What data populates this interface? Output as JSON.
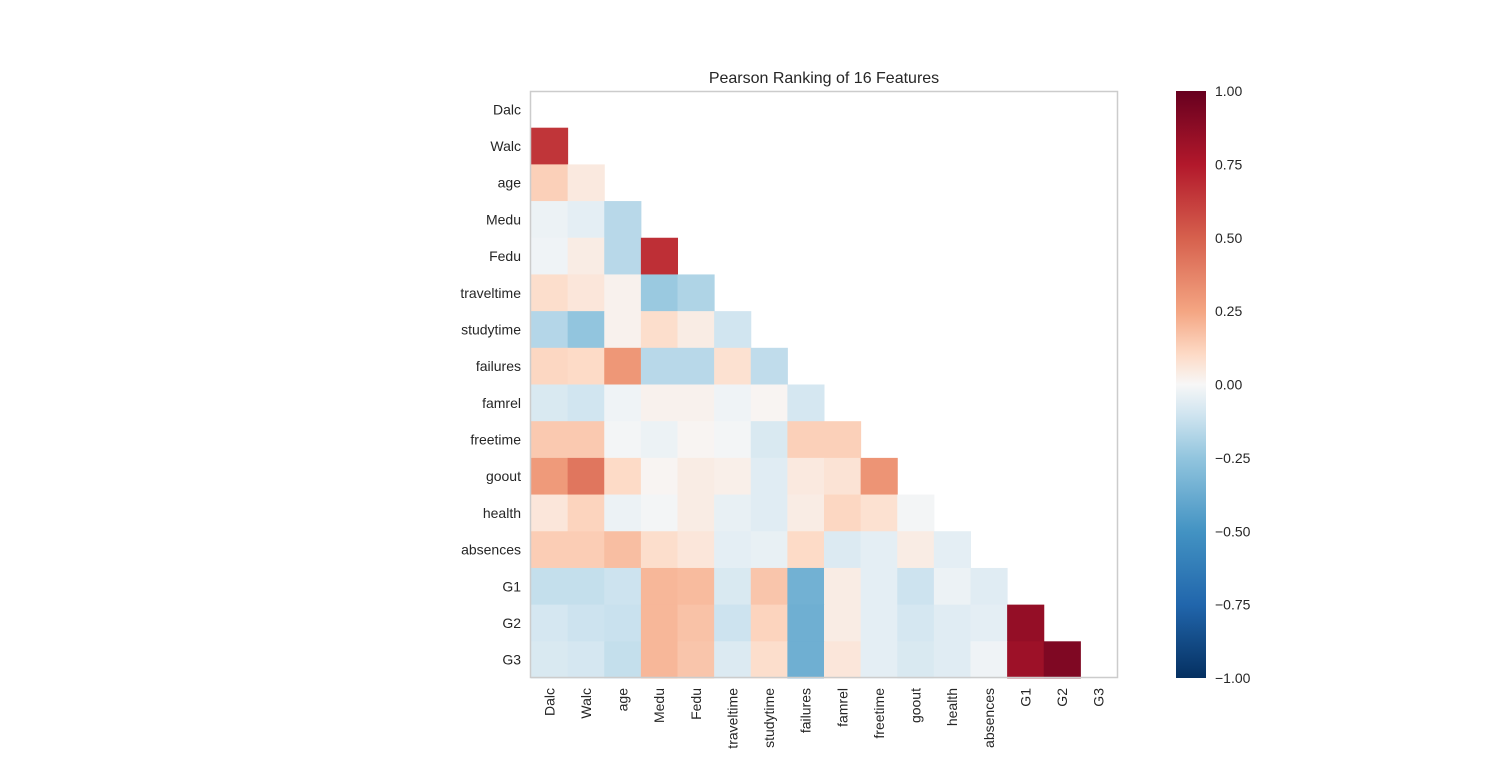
{
  "chart_data": {
    "type": "heatmap",
    "title": "Pearson Ranking of 16 Features",
    "features": [
      "Dalc",
      "Walc",
      "age",
      "Medu",
      "Fedu",
      "traveltime",
      "studytime",
      "failures",
      "famrel",
      "freetime",
      "goout",
      "health",
      "absences",
      "G1",
      "G2",
      "G3"
    ],
    "mask": "lower-triangle (diagonal and upper triangle hidden)",
    "values": [
      [],
      [
        0.65
      ],
      [
        0.13,
        0.05
      ],
      [
        -0.03,
        -0.05,
        -0.16
      ],
      [
        -0.02,
        0.04,
        -0.16,
        0.67
      ],
      [
        0.09,
        0.06,
        0.02,
        -0.23,
        -0.18
      ],
      [
        -0.17,
        -0.25,
        0.02,
        0.09,
        0.04,
        -0.1
      ],
      [
        0.11,
        0.1,
        0.3,
        -0.16,
        -0.16,
        0.08,
        -0.14
      ],
      [
        -0.08,
        -0.1,
        -0.02,
        0.02,
        0.02,
        -0.02,
        0.01,
        -0.09
      ],
      [
        0.15,
        0.15,
        -0.01,
        -0.03,
        0.01,
        -0.01,
        -0.08,
        0.13,
        0.13
      ],
      [
        0.29,
        0.42,
        0.1,
        0.01,
        0.04,
        0.03,
        -0.06,
        0.05,
        0.07,
        0.31
      ],
      [
        0.06,
        0.12,
        -0.03,
        -0.01,
        0.04,
        -0.04,
        -0.06,
        0.04,
        0.11,
        0.08,
        -0.01
      ],
      [
        0.14,
        0.14,
        0.18,
        0.09,
        0.06,
        -0.05,
        -0.04,
        0.1,
        -0.07,
        -0.05,
        0.04,
        -0.05
      ],
      [
        -0.13,
        -0.13,
        -0.11,
        0.2,
        0.19,
        -0.08,
        0.16,
        -0.35,
        0.04,
        -0.05,
        -0.11,
        -0.03,
        -0.06
      ],
      [
        -0.09,
        -0.11,
        -0.12,
        0.2,
        0.17,
        -0.11,
        0.12,
        -0.36,
        0.04,
        -0.05,
        -0.09,
        -0.06,
        -0.05,
        0.85
      ],
      [
        -0.08,
        -0.09,
        -0.13,
        0.2,
        0.16,
        -0.07,
        0.09,
        -0.36,
        0.06,
        -0.05,
        -0.08,
        -0.06,
        -0.02,
        0.82,
        0.92
      ]
    ],
    "colorbar": {
      "min": -1.0,
      "max": 1.0,
      "colormap": "RdBu_r",
      "ticks": [
        "−1.00",
        "−0.75",
        "−0.50",
        "−0.25",
        "0.00",
        "0.25",
        "0.50",
        "0.75",
        "1.00"
      ]
    },
    "grid": false
  }
}
